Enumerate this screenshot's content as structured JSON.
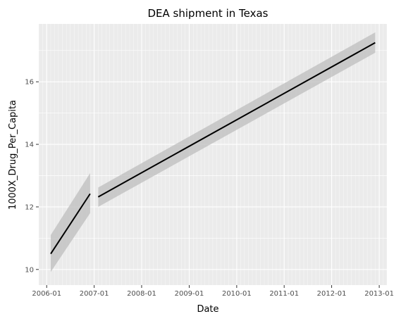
{
  "chart_data": {
    "type": "line",
    "title": "DEA shipment in Texas",
    "xlabel": "Date",
    "ylabel": "1000X_Drug_Per_Capita",
    "x_is_date": true,
    "xlim": [
      "2005-11-01",
      "2013-03-01"
    ],
    "ylim": [
      9.5,
      17.85
    ],
    "x_ticks": [
      "2006-01",
      "2007-01",
      "2008-01",
      "2009-01",
      "2010-01",
      "2011-01",
      "2012-01",
      "2013-01"
    ],
    "y_ticks": [
      10,
      12,
      14,
      16
    ],
    "grid": true,
    "minor_x_grid": "monthly",
    "colors": {
      "panel": "#ebebeb",
      "grid": "#ffffff",
      "line": "#000000",
      "band": "#bdbdbd",
      "tick_text": "#4d4d4d"
    },
    "series": [
      {
        "type": "smooth-fit",
        "x": [
          "2006-02-01",
          "2006-12-01"
        ],
        "y": [
          10.5,
          12.42
        ],
        "ci_lower": [
          9.92,
          11.8
        ],
        "ci_upper": [
          11.1,
          13.08
        ]
      },
      {
        "type": "smooth-fit",
        "x": [
          "2007-02-01",
          "2012-12-01"
        ],
        "y": [
          12.32,
          17.25
        ],
        "ci_lower": [
          12.0,
          16.93
        ],
        "ci_upper": [
          12.62,
          17.58
        ]
      }
    ]
  }
}
